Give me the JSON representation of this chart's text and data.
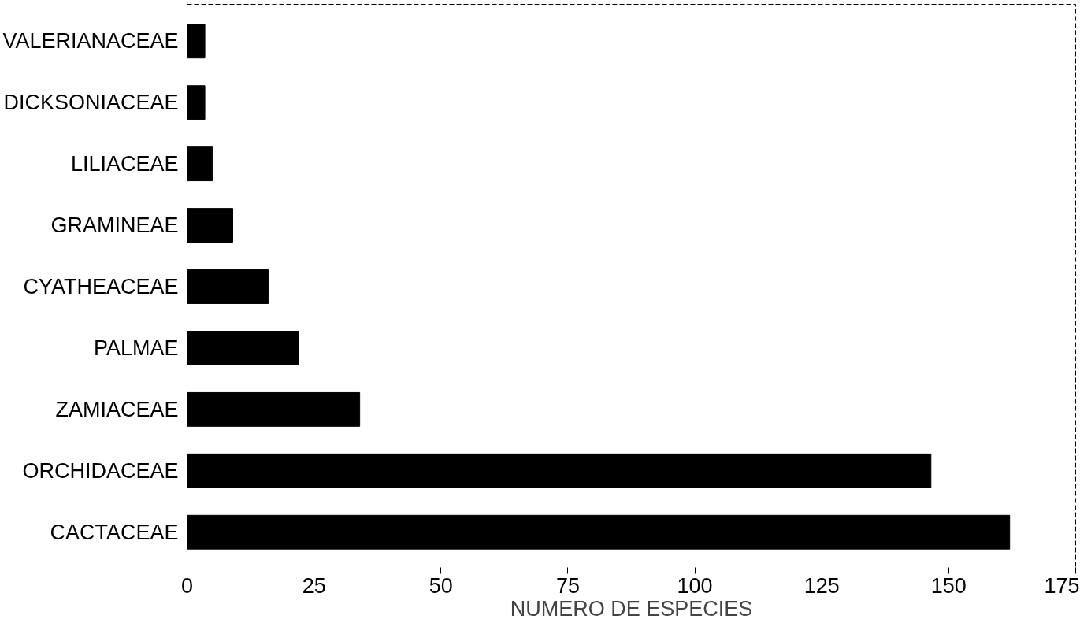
{
  "chart_data": {
    "type": "bar",
    "orientation": "horizontal",
    "xlabel": "NUMERO DE ESPECIES",
    "categories": [
      "VALERIANACEAE",
      "DICKSONIACEAE",
      "LILIACEAE",
      "GRAMINEAE",
      "CYATHEACEAE",
      "PALMAE",
      "ZAMIACEAE",
      "ORCHIDACEAE",
      "CACTACEAE"
    ],
    "values": [
      3.5,
      3.5,
      5,
      9,
      16,
      22,
      34,
      146.5,
      162
    ],
    "color": "#000000",
    "xlim": [
      0,
      175
    ],
    "xticks": [
      0,
      25,
      50,
      75,
      100,
      125,
      150,
      175
    ],
    "grid": false
  }
}
